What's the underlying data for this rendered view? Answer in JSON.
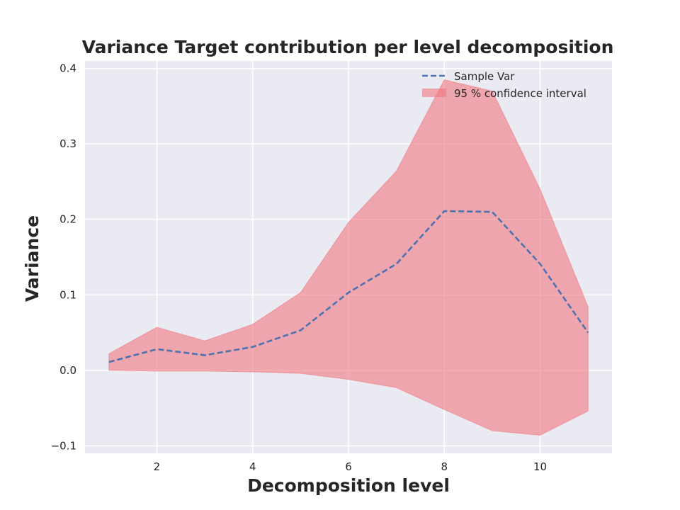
{
  "chart_data": {
    "type": "line",
    "title": "Variance Target contribution per level decomposition",
    "xlabel": "Decomposition level",
    "ylabel": "Variance",
    "xlim": [
      0.5,
      11.5
    ],
    "ylim": [
      -0.11,
      0.41
    ],
    "xticks": [
      2,
      4,
      6,
      8,
      10
    ],
    "yticks": [
      -0.1,
      0.0,
      0.1,
      0.2,
      0.3,
      0.4
    ],
    "ytick_labels": [
      "−0.1",
      "0.0",
      "0.1",
      "0.2",
      "0.3",
      "0.4"
    ],
    "grid": true,
    "legend_position": "top-right",
    "x": [
      1,
      2,
      3,
      4,
      5,
      6,
      7,
      8,
      9,
      10,
      11
    ],
    "series": [
      {
        "name": "Sample Var",
        "style": "dashed",
        "color": "#4c72b0",
        "values": [
          0.011,
          0.028,
          0.02,
          0.031,
          0.053,
          0.103,
          0.141,
          0.211,
          0.21,
          0.141,
          0.05
        ]
      }
    ],
    "band": {
      "name": "95 % confidence interval",
      "color": "#f0777f",
      "lower": [
        0.0,
        -0.001,
        -0.001,
        -0.002,
        -0.004,
        -0.012,
        -0.023,
        -0.052,
        -0.08,
        -0.086,
        -0.054
      ],
      "upper": [
        0.022,
        0.057,
        0.039,
        0.061,
        0.103,
        0.196,
        0.264,
        0.385,
        0.37,
        0.24,
        0.084
      ]
    }
  },
  "colors": {
    "plot_background": "#eaeaf2",
    "grid": "#ffffff",
    "text": "#262626"
  }
}
